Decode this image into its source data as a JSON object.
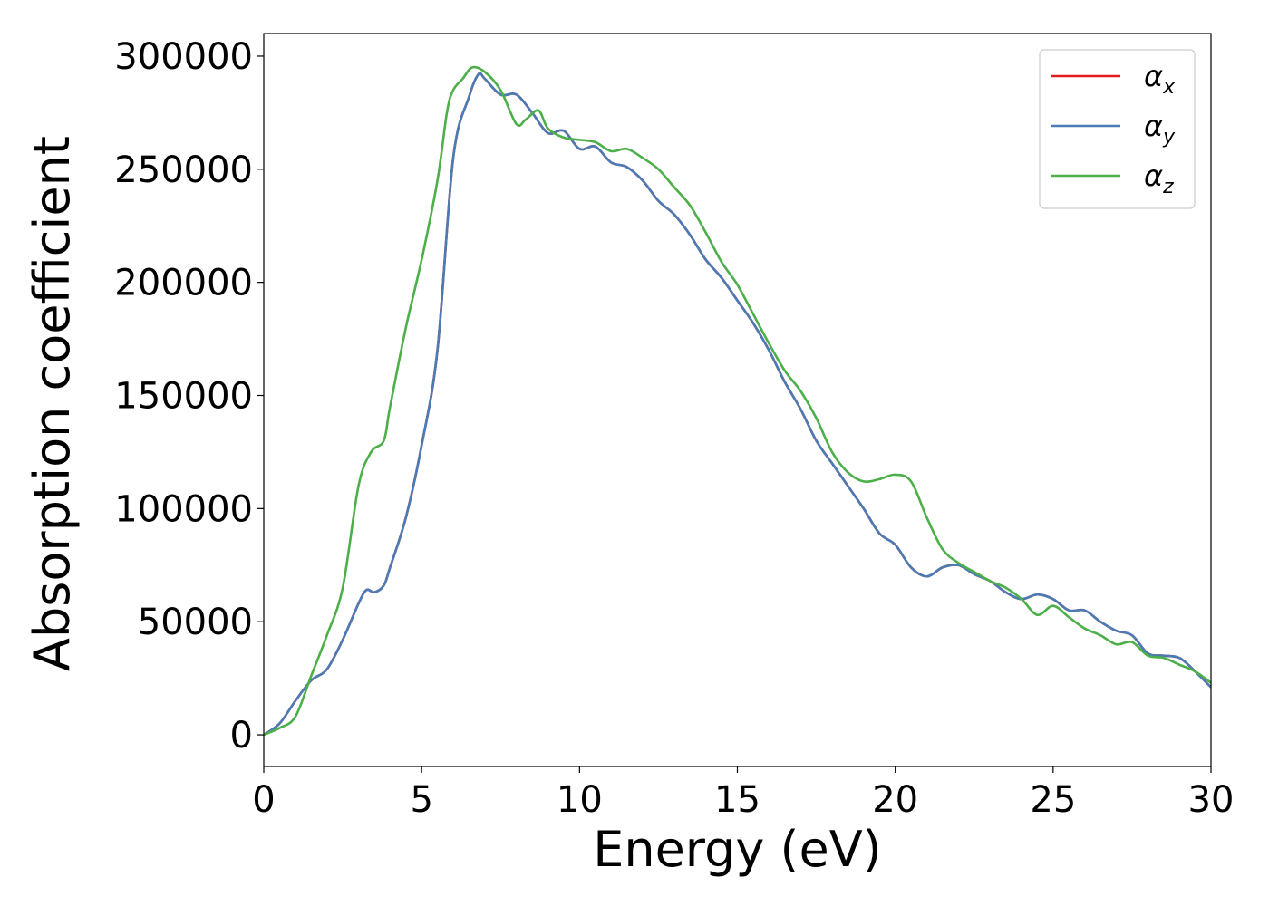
{
  "chart_data": {
    "type": "line",
    "title": "",
    "xlabel": "Energy (eV)",
    "ylabel": "Absorption coefficient",
    "xlim": [
      0,
      30
    ],
    "ylim": [
      -14000,
      310000
    ],
    "xticks": [
      0,
      5,
      10,
      15,
      20,
      25,
      30
    ],
    "xtick_labels": [
      "0",
      "5",
      "10",
      "15",
      "20",
      "25",
      "30"
    ],
    "yticks": [
      0,
      50000,
      100000,
      150000,
      200000,
      250000,
      300000
    ],
    "ytick_labels": [
      "0",
      "50000",
      "100000",
      "150000",
      "200000",
      "250000",
      "300000"
    ],
    "grid": false,
    "legend_position": "top-right",
    "series": [
      {
        "name": "α_x",
        "legend_symbol": "α",
        "legend_subscript": "x",
        "color": "#e41a1c",
        "x": [
          0,
          0.5,
          1,
          1.5,
          2,
          2.5,
          3,
          3.25,
          3.5,
          3.8,
          4,
          4.5,
          5,
          5.5,
          6,
          6.5,
          6.8,
          7,
          7.5,
          8,
          8.5,
          9,
          9.5,
          10,
          10.5,
          11,
          11.5,
          12,
          12.5,
          13,
          13.5,
          14,
          14.5,
          15,
          15.5,
          16,
          16.5,
          17,
          17.5,
          18,
          18.5,
          19,
          19.5,
          20,
          20.5,
          21,
          21.5,
          22,
          22.5,
          23,
          23.5,
          24,
          24.5,
          25,
          25.5,
          26,
          26.5,
          27,
          27.5,
          28,
          28.5,
          29,
          29.5,
          30
        ],
        "y": [
          0,
          5000,
          15000,
          24000,
          29000,
          42000,
          58000,
          64000,
          63000,
          66000,
          74000,
          96000,
          128000,
          170000,
          255000,
          282000,
          292000,
          290000,
          283000,
          283000,
          275000,
          266000,
          267000,
          259000,
          260000,
          253000,
          251000,
          245000,
          236000,
          230000,
          221000,
          210000,
          202000,
          192000,
          182000,
          170000,
          156000,
          144000,
          130000,
          120000,
          110000,
          100000,
          89000,
          84000,
          74000,
          70000,
          74000,
          75000,
          71000,
          68000,
          63000,
          60000,
          62000,
          60000,
          55000,
          55000,
          50000,
          46000,
          44000,
          36000,
          35000,
          34000,
          28000,
          21000
        ]
      },
      {
        "name": "α_y",
        "legend_symbol": "α",
        "legend_subscript": "y",
        "color": "#4a7bb4",
        "x": [
          0,
          0.5,
          1,
          1.5,
          2,
          2.5,
          3,
          3.25,
          3.5,
          3.8,
          4,
          4.5,
          5,
          5.5,
          6,
          6.5,
          6.8,
          7,
          7.5,
          8,
          8.5,
          9,
          9.5,
          10,
          10.5,
          11,
          11.5,
          12,
          12.5,
          13,
          13.5,
          14,
          14.5,
          15,
          15.5,
          16,
          16.5,
          17,
          17.5,
          18,
          18.5,
          19,
          19.5,
          20,
          20.5,
          21,
          21.5,
          22,
          22.5,
          23,
          23.5,
          24,
          24.5,
          25,
          25.5,
          26,
          26.5,
          27,
          27.5,
          28,
          28.5,
          29,
          29.5,
          30
        ],
        "y": [
          0,
          5000,
          15000,
          24000,
          29000,
          42000,
          58000,
          64000,
          63000,
          66000,
          74000,
          96000,
          128000,
          170000,
          255000,
          282000,
          292000,
          290000,
          283000,
          283000,
          275000,
          266000,
          267000,
          259000,
          260000,
          253000,
          251000,
          245000,
          236000,
          230000,
          221000,
          210000,
          202000,
          192000,
          182000,
          170000,
          156000,
          144000,
          130000,
          120000,
          110000,
          100000,
          89000,
          84000,
          74000,
          70000,
          74000,
          75000,
          71000,
          68000,
          63000,
          60000,
          62000,
          60000,
          55000,
          55000,
          50000,
          46000,
          44000,
          36000,
          35000,
          34000,
          28000,
          21000
        ]
      },
      {
        "name": "α_z",
        "legend_symbol": "α",
        "legend_subscript": "z",
        "color": "#4daf4a",
        "x": [
          0,
          0.5,
          1,
          1.5,
          2,
          2.5,
          3,
          3.4,
          3.8,
          4,
          4.5,
          5,
          5.5,
          5.8,
          6,
          6.3,
          6.6,
          7,
          7.5,
          8,
          8.3,
          8.7,
          9,
          9.5,
          10,
          10.5,
          11,
          11.5,
          12,
          12.5,
          13,
          13.5,
          14,
          14.5,
          15,
          15.5,
          16,
          16.5,
          17,
          17.5,
          18,
          18.5,
          19,
          19.5,
          20,
          20.5,
          21,
          21.5,
          22,
          22.5,
          23,
          23.5,
          24,
          24.5,
          25,
          25.5,
          26,
          26.5,
          27,
          27.5,
          28,
          28.5,
          29,
          29.5,
          30
        ],
        "y": [
          0,
          3000,
          8000,
          26000,
          44000,
          65000,
          110000,
          125000,
          130000,
          145000,
          180000,
          210000,
          245000,
          275000,
          285000,
          290000,
          295000,
          293000,
          285000,
          270000,
          272000,
          276000,
          268000,
          264000,
          263000,
          262000,
          258000,
          259000,
          255000,
          250000,
          242000,
          234000,
          222000,
          209000,
          199000,
          186000,
          173000,
          161000,
          152000,
          140000,
          125000,
          116000,
          112000,
          113000,
          115000,
          112000,
          96000,
          82000,
          76000,
          72000,
          68000,
          65000,
          60000,
          53000,
          57000,
          52000,
          47000,
          44000,
          40000,
          41000,
          35000,
          34000,
          31000,
          28000,
          23000
        ]
      }
    ]
  }
}
